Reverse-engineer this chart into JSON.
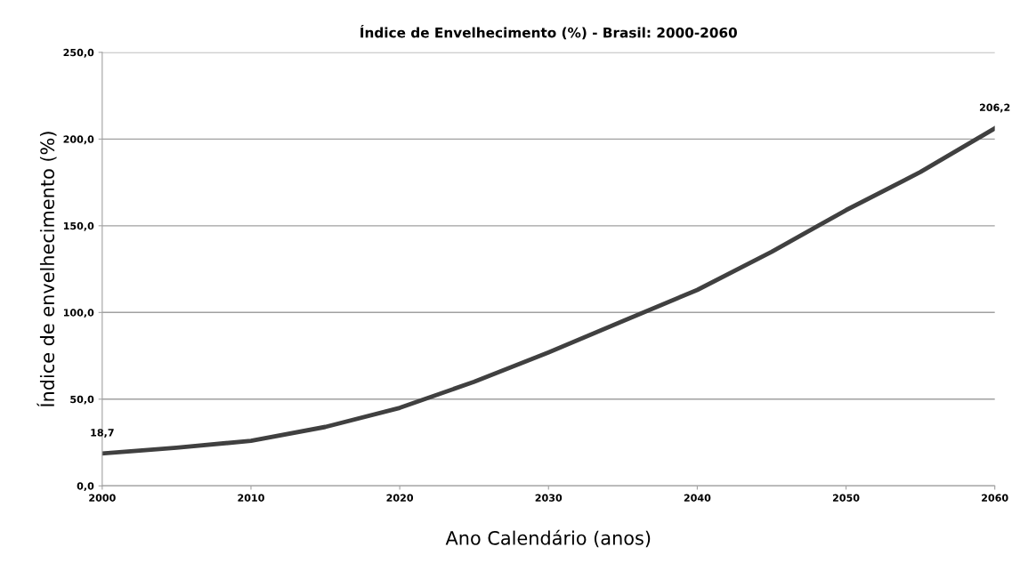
{
  "chart_data": {
    "type": "line",
    "title": "Índice de Envelhecimento (%) - Brasil: 2000-2060",
    "xlabel": "Ano Calendário (anos)",
    "ylabel": "Índice de envelhecimento (%)",
    "x": [
      2000,
      2005,
      2010,
      2015,
      2020,
      2025,
      2030,
      2035,
      2040,
      2045,
      2050,
      2055,
      2060
    ],
    "series": [
      {
        "color": "#404040",
        "values": [
          18.7,
          22,
          26,
          34,
          45,
          60,
          77,
          95,
          113,
          135,
          159,
          181,
          206.2
        ]
      }
    ],
    "annotations": [
      {
        "text": "18,7",
        "x": 2000,
        "y": 18.7
      },
      {
        "text": "206,2",
        "x": 2060,
        "y": 206.2
      }
    ],
    "xlim": [
      2000,
      2060
    ],
    "xticks": [
      2000,
      2010,
      2020,
      2030,
      2040,
      2050,
      2060
    ],
    "ylim": [
      0,
      250
    ],
    "yticks": [
      {
        "value": 0,
        "label": "0,0"
      },
      {
        "value": 50,
        "label": "50,0"
      },
      {
        "value": 100,
        "label": "100,0"
      },
      {
        "value": 150,
        "label": "150,0"
      },
      {
        "value": 200,
        "label": "200,0"
      },
      {
        "value": 250,
        "label": "250,0"
      }
    ],
    "grid": "y",
    "legend": false,
    "marker": "none",
    "line_style": "solid"
  }
}
